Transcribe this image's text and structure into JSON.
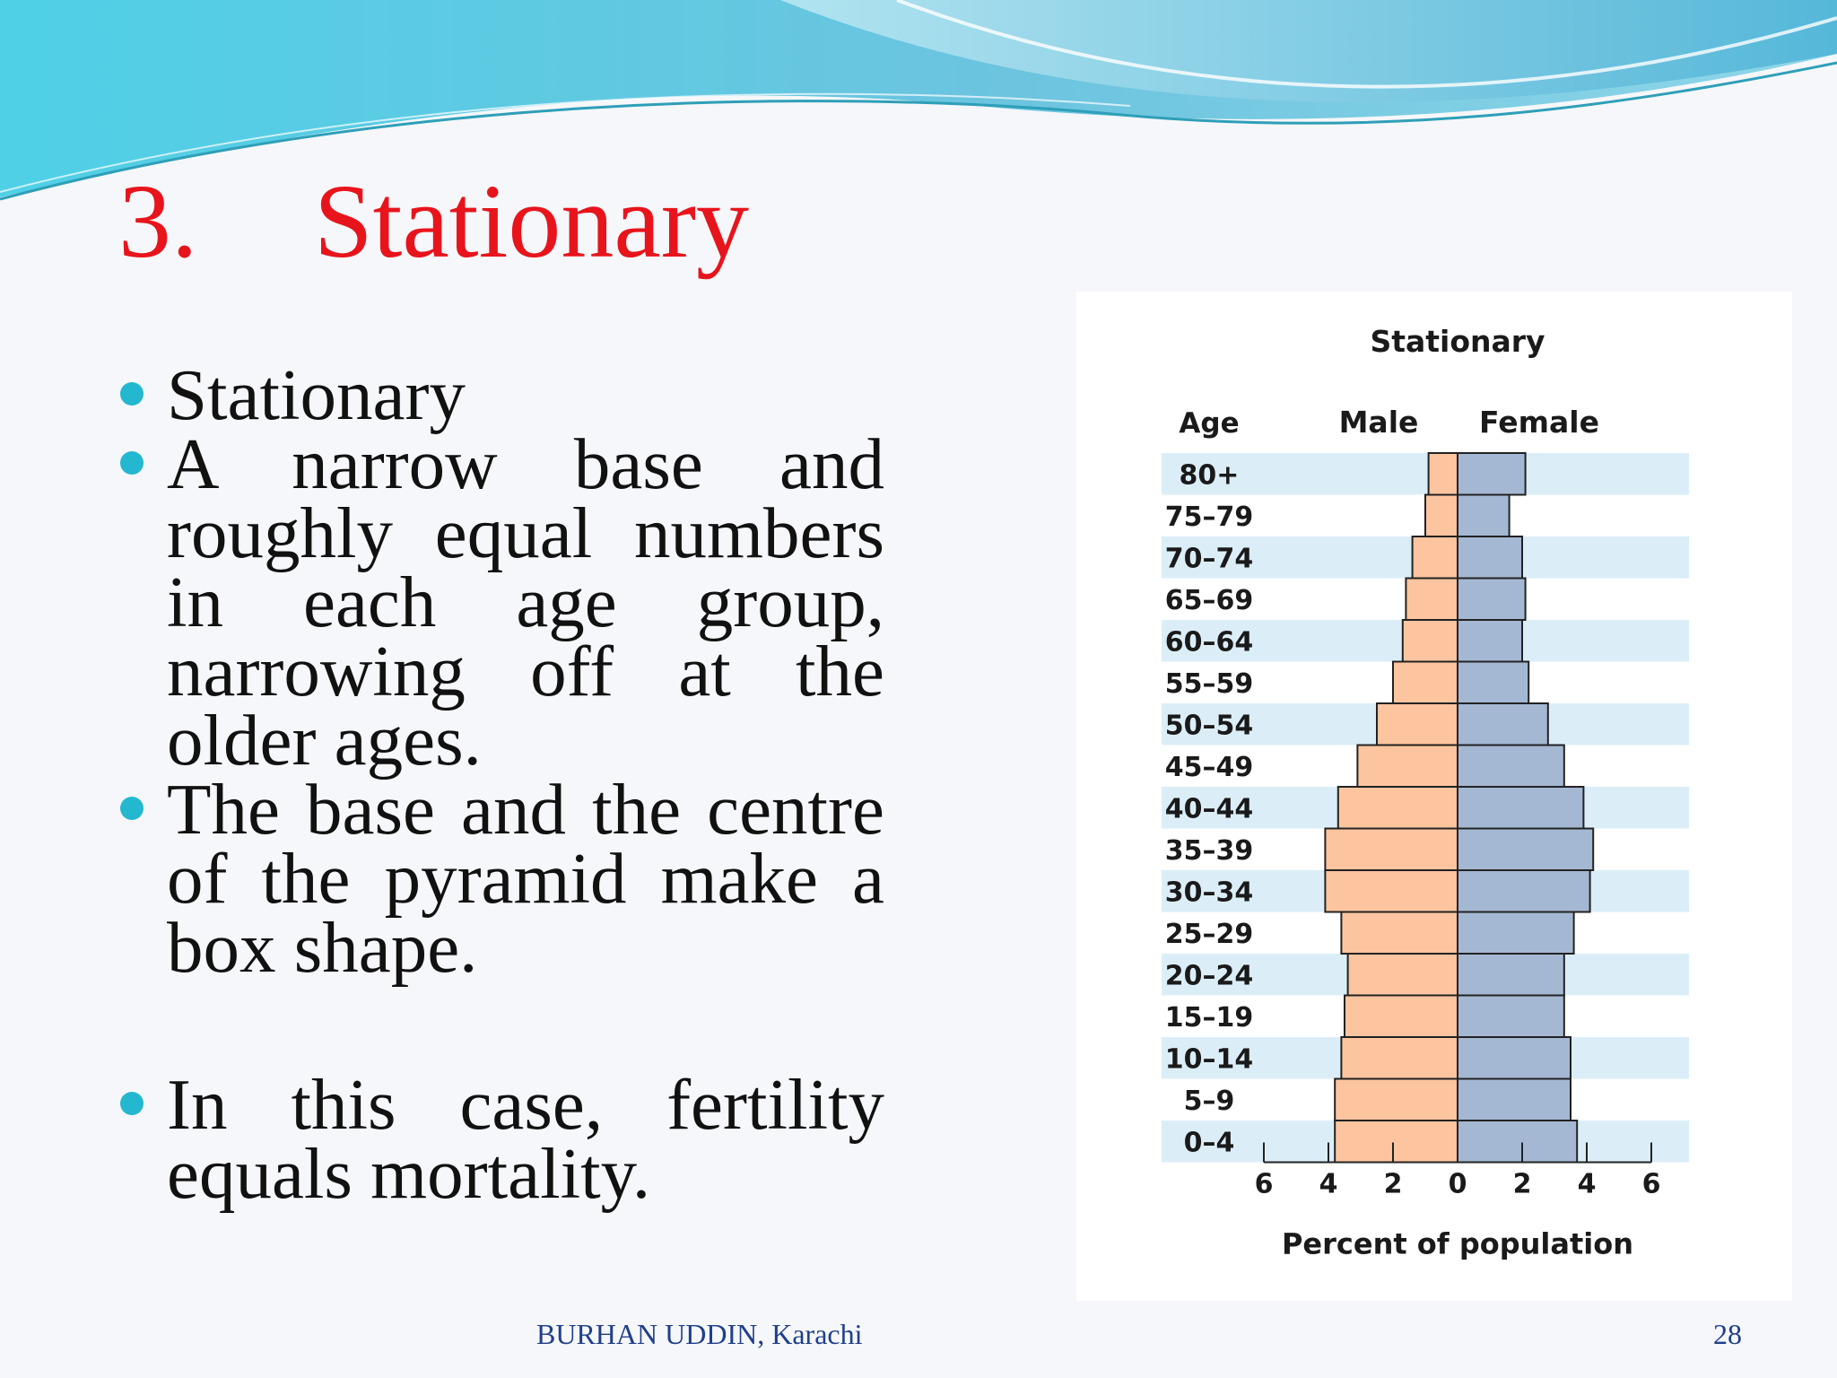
{
  "slide": {
    "title_number": "3.",
    "title_text": "Stationary",
    "bullets": [
      "Stationary",
      "A narrow base and roughly equal numbers in each age group, narrowing off at the older ages.",
      "The base and the centre of the pyramid make a box shape.",
      "In this case, fertility equals mortality."
    ],
    "footer_author": "BURHAN UDDIN, Karachi",
    "page_number": "28"
  },
  "colors": {
    "title": "#e8141c",
    "bullet_dot": "#23b8cf",
    "male_bar": "#fcc59f",
    "female_bar": "#a4b8d3",
    "row_band": "#dbeef8",
    "footer_text": "#1f3f8c"
  },
  "chart_data": {
    "type": "bar",
    "orientation": "horizontal-pyramid",
    "title": "Stationary",
    "age_header": "Age",
    "male_header": "Male",
    "female_header": "Female",
    "xlabel": "Percent of population",
    "xlim": [
      -6,
      6
    ],
    "x_ticks": [
      -6,
      -4,
      -2,
      0,
      2,
      4,
      6
    ],
    "x_tick_labels": [
      "6",
      "4",
      "2",
      "0",
      "2",
      "4",
      "6"
    ],
    "categories": [
      "80+",
      "75–79",
      "70–74",
      "65–69",
      "60–64",
      "55–59",
      "50–54",
      "45–49",
      "40–44",
      "35–39",
      "30–34",
      "25–29",
      "20–24",
      "15–19",
      "10–14",
      "5–9",
      "0–4"
    ],
    "series": [
      {
        "name": "Male",
        "values": [
          0.9,
          1.0,
          1.4,
          1.6,
          1.7,
          2.0,
          2.5,
          3.1,
          3.7,
          4.1,
          4.1,
          3.6,
          3.4,
          3.5,
          3.6,
          3.8,
          3.8
        ]
      },
      {
        "name": "Female",
        "values": [
          2.1,
          1.6,
          2.0,
          2.1,
          2.0,
          2.2,
          2.8,
          3.3,
          3.9,
          4.2,
          4.1,
          3.6,
          3.3,
          3.3,
          3.5,
          3.5,
          3.7
        ]
      }
    ]
  }
}
